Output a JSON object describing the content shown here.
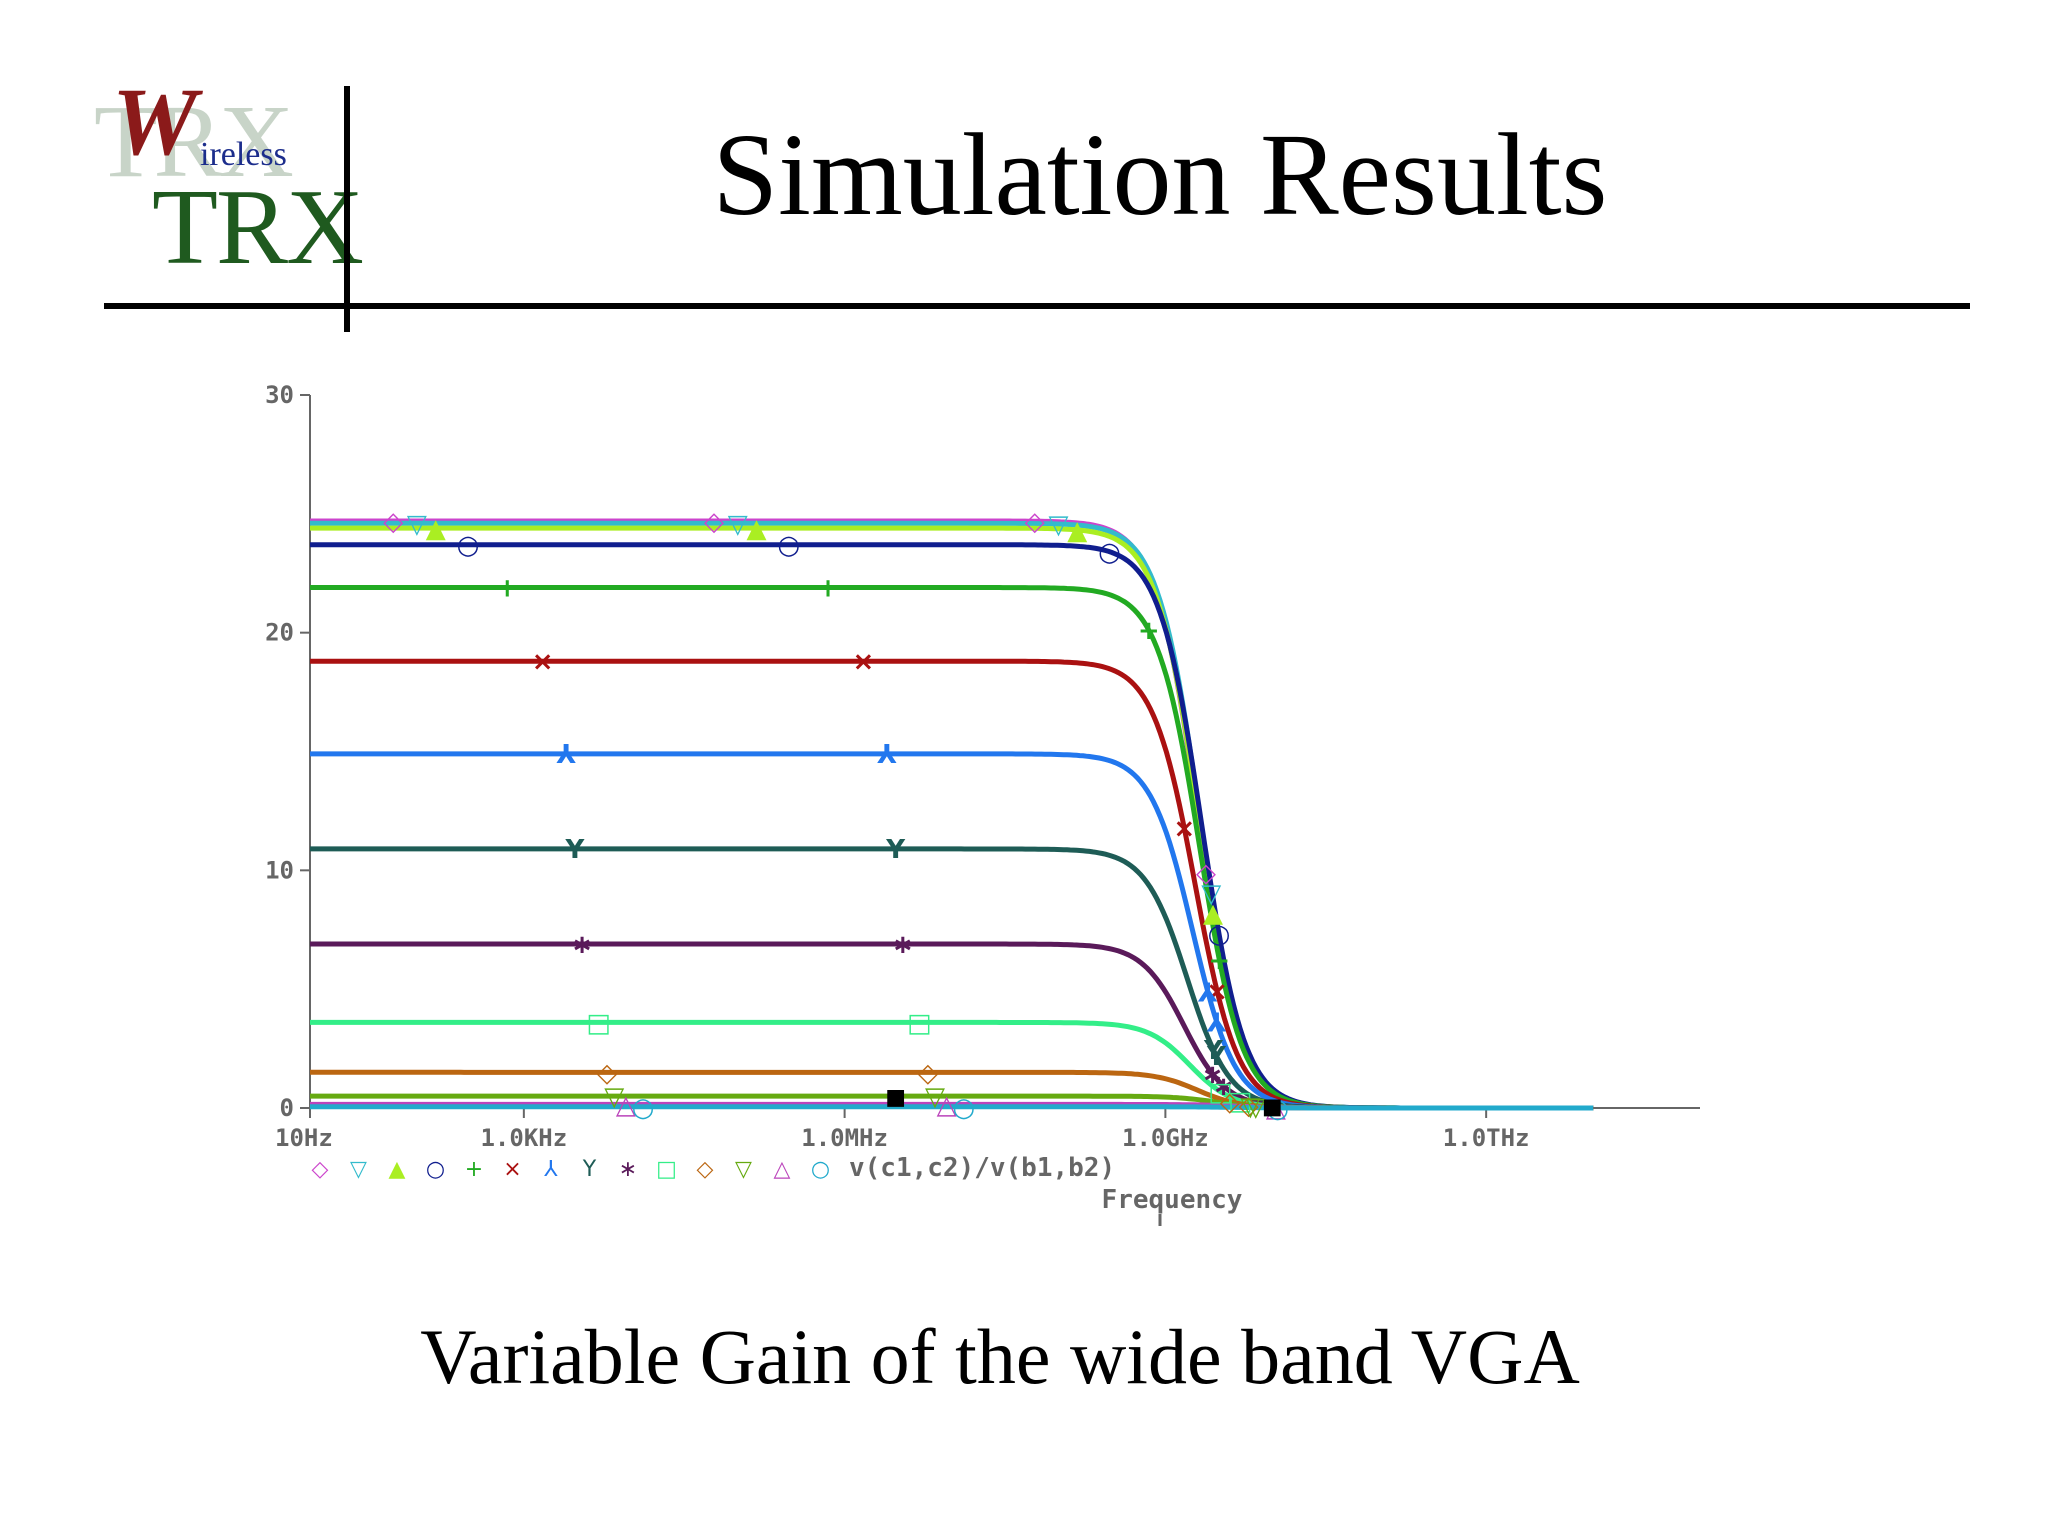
{
  "slide": {
    "title": "Simulation Results",
    "caption": "Variable Gain of the wide band VGA"
  },
  "logo": {
    "letter_w": "W",
    "ireless": "ireless",
    "trx": "TRX",
    "trx_faint": "TRX"
  },
  "chart_data": {
    "type": "line",
    "title": "",
    "xlabel": "Frequency",
    "ylabel": "",
    "x_scale": "log",
    "xlim_hz": [
      10,
      100000000000000
    ],
    "ylim": [
      0,
      30
    ],
    "yticks": [
      0,
      10,
      20,
      30
    ],
    "ytick_labels": [
      "0",
      "10",
      "20",
      "30"
    ],
    "xticks_hz": [
      10,
      1000,
      1000000,
      1000000000,
      1000000000000
    ],
    "xtick_labels": [
      "10Hz",
      "1.0KHz",
      "1.0MHz",
      "1.0GHz",
      "1.0THz"
    ],
    "legend_expression": "v(c1,c2)/v(b1,b2)",
    "legend_position": "bottom-left",
    "grid": false,
    "series": [
      {
        "marker": "◇",
        "color": "#cc44cc",
        "gain": 24.7,
        "f3db_hz": 2000000000,
        "marker_x_hz": [
          60,
          60000,
          60000000
        ]
      },
      {
        "marker": "▽",
        "color": "#33bbcc",
        "gain": 24.6,
        "f3db_hz": 2100000000,
        "marker_x_hz": [
          100,
          100000,
          100000000
        ]
      },
      {
        "marker": "▲",
        "color": "#aaee22",
        "gain": 24.4,
        "f3db_hz": 2050000000,
        "marker_x_hz": [
          150,
          150000,
          150000000
        ]
      },
      {
        "marker": "○",
        "color": "#101e8e",
        "gain": 23.7,
        "f3db_hz": 2200000000,
        "marker_x_hz": [
          300,
          300000,
          300000000
        ]
      },
      {
        "marker": "+",
        "color": "#22aa22",
        "gain": 21.9,
        "f3db_hz": 2100000000,
        "marker_x_hz": [
          700,
          700000,
          700000000
        ]
      },
      {
        "marker": "×",
        "color": "#aa1111",
        "gain": 18.8,
        "f3db_hz": 1900000000,
        "marker_x_hz": [
          1500,
          1500000,
          1500000000
        ]
      },
      {
        "marker": "⅄",
        "color": "#2277ee",
        "gain": 14.9,
        "f3db_hz": 1800000000,
        "marker_x_hz": [
          2500,
          2500000,
          2500000000
        ]
      },
      {
        "marker": "Y",
        "color": "#1e5c56",
        "gain": 10.9,
        "f3db_hz": 1600000000,
        "marker_x_hz": [
          3000,
          3000000,
          3000000000
        ]
      },
      {
        "marker": "∗",
        "color": "#5a1a5a",
        "gain": 6.9,
        "f3db_hz": 1500000000,
        "marker_x_hz": [
          3500,
          3500000,
          3500000000
        ]
      },
      {
        "marker": "□",
        "color": "#33ee88",
        "gain": 3.6,
        "f3db_hz": 1700000000,
        "marker_x_hz": [
          5000,
          5000000,
          5000000000
        ]
      },
      {
        "marker": "◇",
        "color": "#bb6611",
        "gain": 1.5,
        "f3db_hz": 2000000000,
        "marker_x_hz": [
          6000,
          6000000,
          6000000000
        ]
      },
      {
        "marker": "▽",
        "color": "#66aa11",
        "gain": 0.5,
        "f3db_hz": 3000000000,
        "marker_x_hz": [
          7000,
          7000000,
          7000000000
        ]
      },
      {
        "marker": "△",
        "color": "#bb44bb",
        "gain": 0.15,
        "f3db_hz": 5000000000,
        "marker_x_hz": [
          9000,
          9000000
        ]
      },
      {
        "marker": "○",
        "color": "#22aacc",
        "gain": 0.05,
        "f3db_hz": 5000000000,
        "marker_x_hz": [
          13000,
          13000000
        ]
      }
    ],
    "extra_marks": [
      {
        "marker": "■",
        "color": "#000000",
        "x_hz": 3000000,
        "y": 0.55
      },
      {
        "marker": "■",
        "color": "#000000",
        "x_hz": 10000000000,
        "y": 0.15
      }
    ]
  }
}
